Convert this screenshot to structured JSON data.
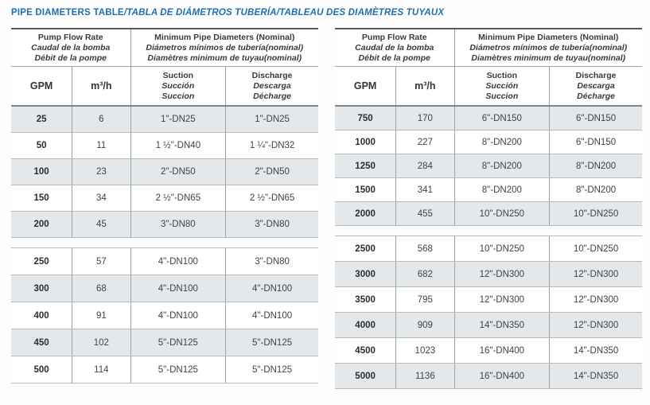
{
  "page": {
    "title_main": "PIPE DIAMETERS TABLE",
    "title_rest": "/TABLA DE DIÁMETROS TUBERÍA/TABLEAU DES DIAMÈTRES TUYAUX"
  },
  "colors": {
    "title_blue": "#1c6fb4",
    "row_shade": "#e4e8ea",
    "border_gray": "#9ca1a4",
    "border_dark": "#53585b",
    "text_dark": "#3a3a3a"
  },
  "header": {
    "flow_group": {
      "en": "Pump Flow Rate",
      "es": "Caudal de la bomba",
      "fr": "Débit de la pompe"
    },
    "diam_group": {
      "en": "Minimum Pipe Diameters (Nominal)",
      "es": "Diámetros mínimos de tubería(nominal)",
      "fr": "Diamètres minimum de tuyau(nominal)"
    },
    "col_gpm": "GPM",
    "col_m3h": "m³/h",
    "suction": {
      "en": "Suction",
      "es": "Succión",
      "fr": "Succion"
    },
    "discharge": {
      "en": "Discharge",
      "es": "Descarga",
      "fr": "Décharge"
    }
  },
  "left": {
    "section1": {
      "rows": [
        [
          "25",
          "6",
          "1\"-DN25",
          "1\"-DN25"
        ],
        [
          "50",
          "11",
          "1 ½\"-DN40",
          "1 ¼\"-DN32"
        ],
        [
          "100",
          "23",
          "2\"-DN50",
          "2\"-DN50"
        ],
        [
          "150",
          "34",
          "2 ½\"-DN65",
          "2 ½\"-DN65"
        ],
        [
          "200",
          "45",
          "3\"-DN80",
          "3\"-DN80"
        ]
      ]
    },
    "section2": {
      "rows": [
        [
          "250",
          "57",
          "4\"-DN100",
          "3\"-DN80"
        ],
        [
          "300",
          "68",
          "4\"-DN100",
          "4\"-DN100"
        ],
        [
          "400",
          "91",
          "4\"-DN100",
          "4\"-DN100"
        ],
        [
          "450",
          "102",
          "5\"-DN125",
          "5\"-DN125"
        ],
        [
          "500",
          "114",
          "5\"-DN125",
          "5\"-DN125"
        ]
      ]
    }
  },
  "right": {
    "section1": {
      "rows": [
        [
          "750",
          "170",
          "6\"-DN150",
          "6\"-DN150"
        ],
        [
          "1000",
          "227",
          "8\"-DN200",
          "6\"-DN150"
        ],
        [
          "1250",
          "284",
          "8\"-DN200",
          "8\"-DN200"
        ],
        [
          "1500",
          "341",
          "8\"-DN200",
          "8\"-DN200"
        ],
        [
          "2000",
          "455",
          "10\"-DN250",
          "10\"-DN250"
        ]
      ]
    },
    "section2": {
      "rows": [
        [
          "2500",
          "568",
          "10\"-DN250",
          "10\"-DN250"
        ],
        [
          "3000",
          "682",
          "12\"-DN300",
          "12\"-DN300"
        ],
        [
          "3500",
          "795",
          "12\"-DN300",
          "12\"-DN300"
        ],
        [
          "4000",
          "909",
          "14\"-DN350",
          "12\"-DN300"
        ],
        [
          "4500",
          "1023",
          "16\"-DN400",
          "14\"-DN350"
        ],
        [
          "5000",
          "1136",
          "16\"-DN400",
          "14\"-DN350"
        ]
      ]
    }
  }
}
